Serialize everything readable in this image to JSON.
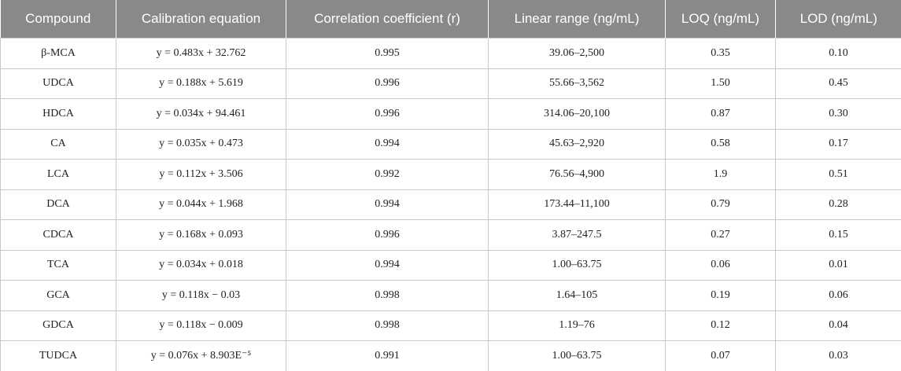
{
  "table": {
    "header": [
      "Compound",
      "Calibration equation",
      "Correlation coefficient (r)",
      "Linear range (ng/mL)",
      "LOQ (ng/mL)",
      "LOD (ng/mL)"
    ],
    "rows": [
      [
        "β-MCA",
        "y = 0.483x + 32.762",
        "0.995",
        "39.06–2,500",
        "0.35",
        "0.10"
      ],
      [
        "UDCA",
        "y = 0.188x + 5.619",
        "0.996",
        "55.66–3,562",
        "1.50",
        "0.45"
      ],
      [
        "HDCA",
        "y = 0.034x + 94.461",
        "0.996",
        "314.06–20,100",
        "0.87",
        "0.30"
      ],
      [
        "CA",
        "y = 0.035x + 0.473",
        "0.994",
        "45.63–2,920",
        "0.58",
        "0.17"
      ],
      [
        "LCA",
        "y = 0.112x + 3.506",
        "0.992",
        "76.56–4,900",
        "1.9",
        "0.51"
      ],
      [
        "DCA",
        "y = 0.044x + 1.968",
        "0.994",
        "173.44–11,100",
        "0.79",
        "0.28"
      ],
      [
        "CDCA",
        "y = 0.168x + 0.093",
        "0.996",
        "3.87–247.5",
        "0.27",
        "0.15"
      ],
      [
        "TCA",
        "y = 0.034x + 0.018",
        "0.994",
        "1.00–63.75",
        "0.06",
        "0.01"
      ],
      [
        "GCA",
        "y = 0.118x − 0.03",
        "0.998",
        "1.64–105",
        "0.19",
        "0.06"
      ],
      [
        "GDCA",
        "y = 0.118x − 0.009",
        "0.998",
        "1.19–76",
        "0.12",
        "0.04"
      ],
      [
        "TUDCA",
        "y = 0.076x + 8.903E⁻⁵",
        "0.991",
        "1.00–63.75",
        "0.07",
        "0.03"
      ]
    ]
  }
}
